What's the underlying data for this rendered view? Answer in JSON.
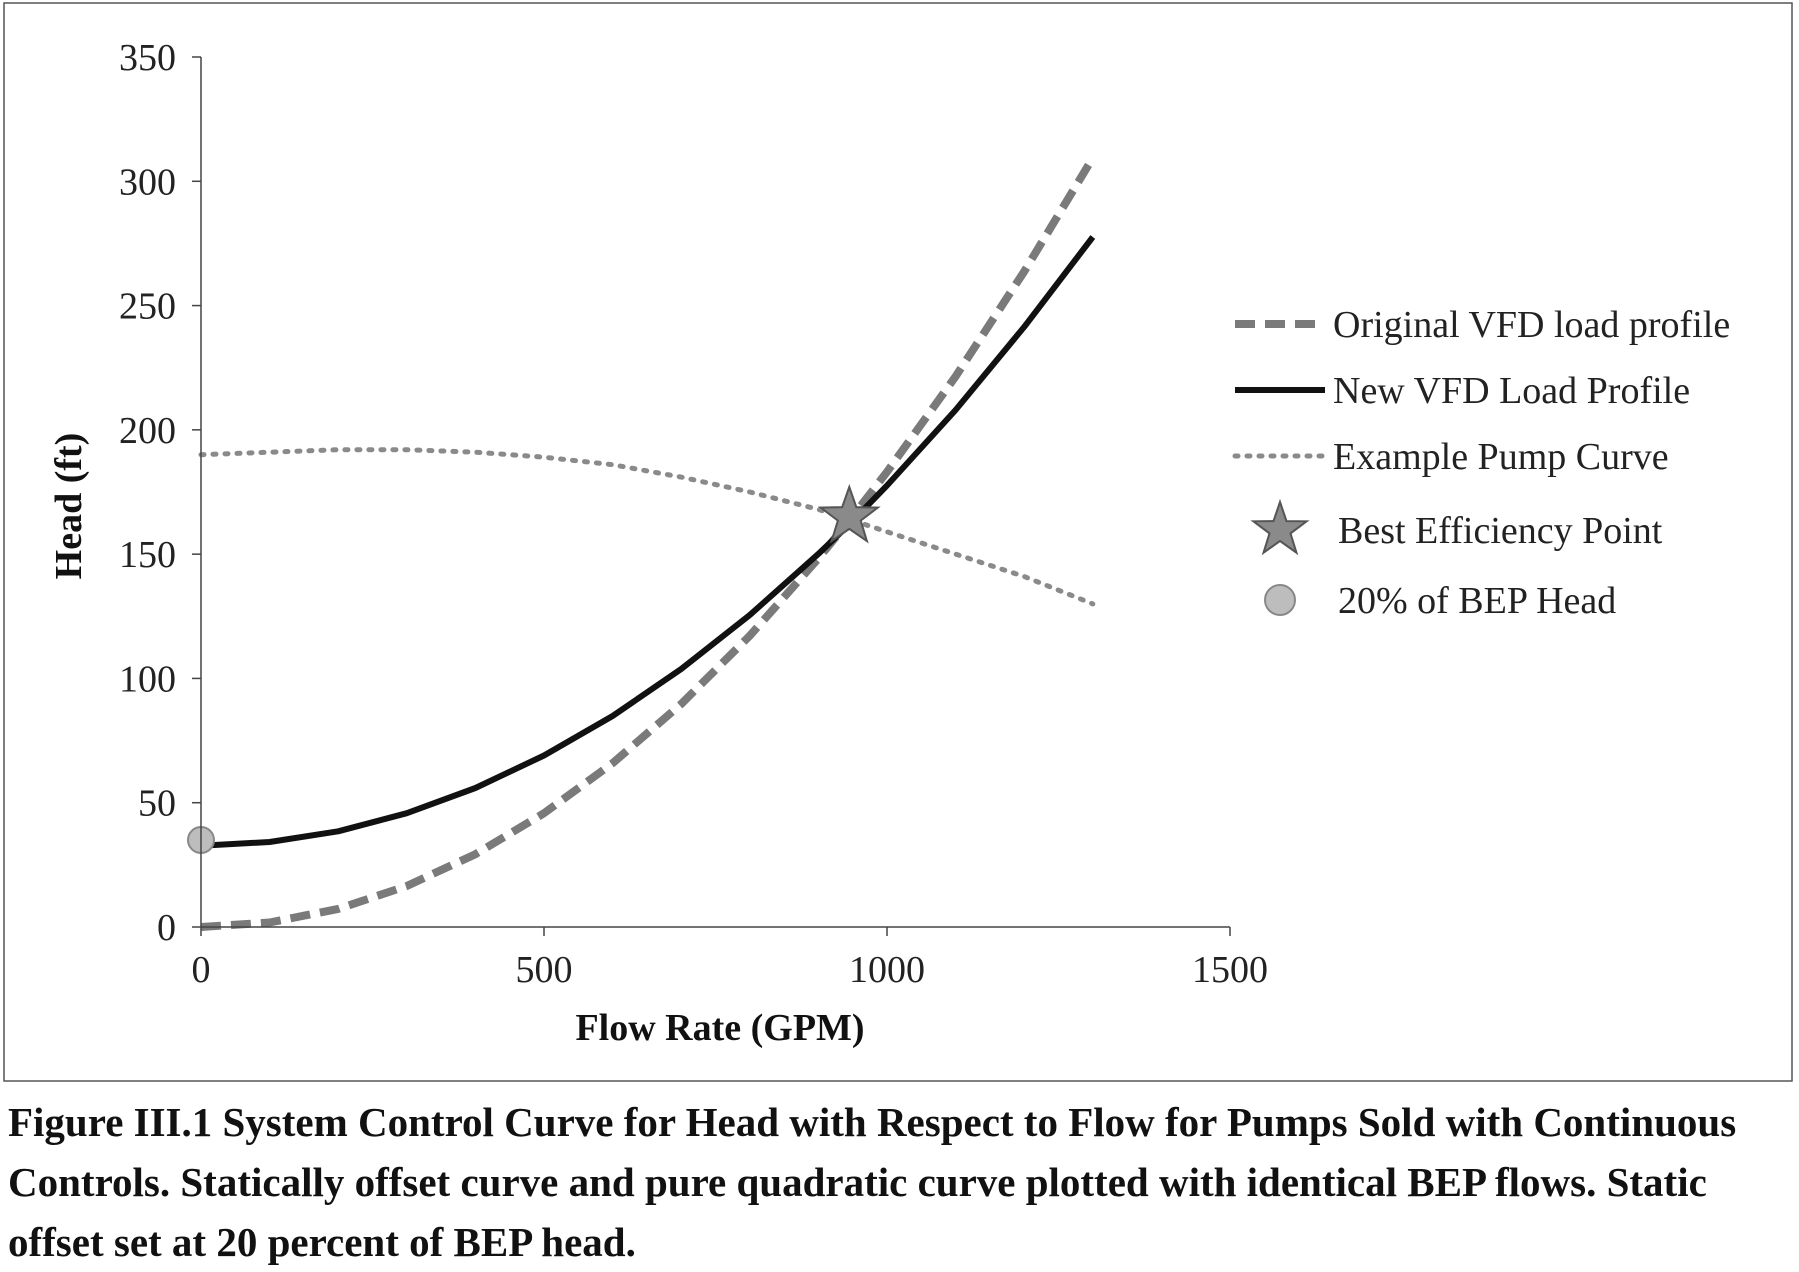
{
  "chart_data": {
    "type": "line",
    "title": "",
    "xlabel": "Flow Rate (GPM)",
    "ylabel": "Head (ft)",
    "xlim": [
      0,
      1500
    ],
    "ylim": [
      0,
      350
    ],
    "xticks": [
      0,
      500,
      1000,
      1500
    ],
    "yticks": [
      0,
      50,
      100,
      150,
      200,
      250,
      300,
      350
    ],
    "grid": false,
    "legend_position": "right",
    "series": [
      {
        "name": "Original VFD load profile",
        "style": "dashed",
        "color": "#7a7a7a",
        "x": [
          0,
          100,
          200,
          300,
          400,
          500,
          600,
          700,
          800,
          900,
          945,
          1000,
          1100,
          1200,
          1300
        ],
        "y": [
          0,
          1.8,
          7.3,
          16.5,
          29.3,
          45.8,
          65.9,
          89.7,
          117.2,
          148.3,
          163.5,
          183.1,
          221.5,
          263.7,
          309.4
        ]
      },
      {
        "name": "New VFD Load Profile",
        "style": "solid",
        "color": "#111111",
        "x": [
          0,
          100,
          200,
          300,
          400,
          500,
          600,
          700,
          800,
          900,
          945,
          1000,
          1100,
          1200,
          1300
        ],
        "y": [
          32.7,
          34.2,
          38.5,
          45.8,
          55.9,
          69.0,
          84.9,
          103.8,
          125.5,
          150.1,
          162.0,
          177.6,
          208.0,
          241.4,
          277.6
        ]
      },
      {
        "name": "Example Pump Curve",
        "style": "dotted",
        "color": "#8a8a8a",
        "x": [
          0,
          100,
          200,
          300,
          400,
          500,
          600,
          700,
          800,
          900,
          945,
          1000,
          1100,
          1200,
          1300
        ],
        "y": [
          190,
          191,
          192,
          192,
          191,
          189,
          186,
          181,
          175,
          168,
          164,
          159,
          150,
          141,
          130
        ]
      }
    ],
    "points": [
      {
        "name": "Best Efficiency Point",
        "marker": "star",
        "color": "#8a8a8a",
        "x": 945,
        "y": 165
      },
      {
        "name": "20% of BEP Head",
        "marker": "circle",
        "color": "#bdbdbd",
        "x": 0,
        "y": 35
      }
    ]
  },
  "caption": "Figure III.1 System Control Curve for Head with Respect to Flow for Pumps Sold with Continuous Controls. Statically offset curve and pure quadratic curve plotted with identical BEP flows. Static offset set at 20 percent of BEP head."
}
